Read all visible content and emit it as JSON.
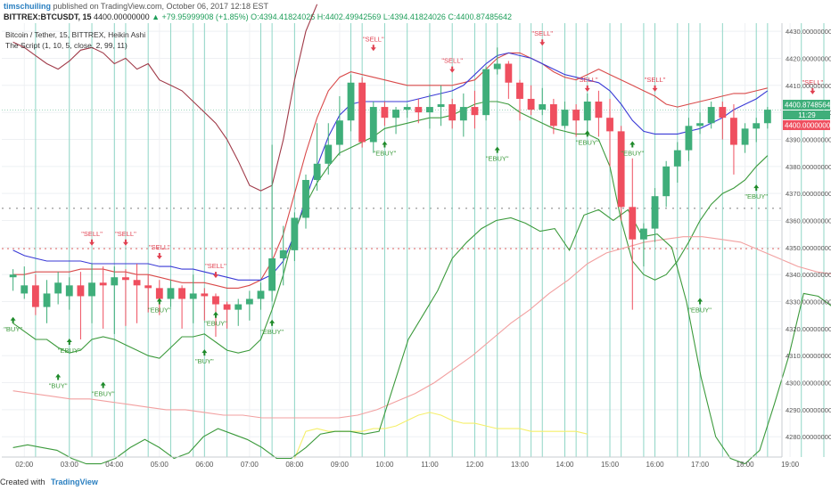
{
  "header": {
    "user": "timschuiling",
    "published": "published on TradingView.com, October 06, 2017 12:18 EST",
    "symbol": "BITTREX:BTCUSDT, 15",
    "price": "4400.00000000",
    "change": "▲ +79.95999908 (+1.85%)",
    "o": "O:4394.41824026",
    "h": "H:4402.49942569",
    "l": "L:4394.41824026",
    "c": "C:4400.87485642"
  },
  "legend": {
    "line1": "Bitcoin / Tether, 15, BITTREX, Heikin Ashi",
    "line2": "The Script (1, 10, 5, close, 2, 99, 11)"
  },
  "price_tags": {
    "current": "4400.87485642",
    "countdown": "11:29",
    "red": "4400.00000000"
  },
  "footer": {
    "created": "Created with",
    "brand": "TradingView"
  },
  "colors": {
    "up": "#3fae7a",
    "down": "#ef4f5f",
    "upper_band": "#d94a4a",
    "mid_band": "#3a3ad6",
    "lower_band": "#3c9a3c",
    "maroon": "#a03a48",
    "salmon": "#f2a0a0",
    "yellow": "#f5ef6a",
    "vline": "#8fd6c6"
  },
  "chart_data": {
    "type": "candlestick",
    "ylim": [
      4272.5,
      4433
    ],
    "y_ticks": [
      "4430.00000000",
      "4420.00000000",
      "4410.00000000",
      "4400.00000000",
      "4390.00000000",
      "4380.00000000",
      "4370.00000000",
      "4360.00000000",
      "4350.00000000",
      "4340.00000000",
      "4330.00000000",
      "4320.00000000",
      "4310.00000000",
      "4300.00000000",
      "4290.00000000",
      "4280.00000000"
    ],
    "y_tick_values": [
      4430,
      4420,
      4410,
      4400,
      4390,
      4380,
      4370,
      4360,
      4350,
      4340,
      4330,
      4320,
      4310,
      4300,
      4290,
      4280
    ],
    "x_ticks": [
      "02:00",
      "03:00",
      "04:00",
      "05:00",
      "06:00",
      "07:00",
      "08:00",
      "09:00",
      "10:00",
      "11:00",
      "12:00",
      "13:00",
      "14:00",
      "15:00",
      "16:00",
      "17:00",
      "18:00",
      "19:00"
    ],
    "x_tick_bars": [
      1,
      5,
      9,
      13,
      17,
      21,
      25,
      29,
      33,
      37,
      41,
      45,
      49,
      53,
      57,
      61,
      65,
      69
    ],
    "candles": [
      [
        4339,
        4340,
        4334,
        4342
      ],
      [
        4333,
        4336,
        4331,
        4343
      ],
      [
        4336,
        4328,
        4325,
        4340
      ],
      [
        4328,
        4333,
        4322,
        4338
      ],
      [
        4333,
        4337,
        4329,
        4341
      ],
      [
        4332,
        4336,
        4327,
        4339
      ],
      [
        4336,
        4332,
        4316,
        4341
      ],
      [
        4332,
        4337,
        4322,
        4344
      ],
      [
        4337,
        4336,
        4320,
        4343
      ],
      [
        4336,
        4339,
        4318,
        4343
      ],
      [
        4339,
        4338,
        4321,
        4342
      ],
      [
        4338,
        4336,
        4322,
        4344
      ],
      [
        4336,
        4335,
        4326,
        4340
      ],
      [
        4335,
        4331,
        4325,
        4338
      ],
      [
        4331,
        4335,
        4328,
        4338
      ],
      [
        4335,
        4331,
        4320,
        4336
      ],
      [
        4331,
        4333,
        4322,
        4340
      ],
      [
        4333,
        4332,
        4323,
        4335
      ],
      [
        4332,
        4329,
        4317,
        4333
      ],
      [
        4329,
        4327,
        4320,
        4330
      ],
      [
        4327,
        4329,
        4321,
        4331
      ],
      [
        4329,
        4331,
        4323,
        4334
      ],
      [
        4331,
        4334,
        4327,
        4337
      ],
      [
        4334,
        4346,
        4330,
        4388
      ],
      [
        4346,
        4349,
        4336,
        4358
      ],
      [
        4349,
        4361,
        4345,
        4363
      ],
      [
        4361,
        4375,
        4357,
        4377
      ],
      [
        4375,
        4381,
        4371,
        4396
      ],
      [
        4381,
        4388,
        4377,
        4396
      ],
      [
        4388,
        4397,
        4384,
        4406
      ],
      [
        4397,
        4411,
        4393,
        4414
      ],
      [
        4411,
        4389,
        4387,
        4413
      ],
      [
        4389,
        4402,
        4385,
        4404
      ],
      [
        4402,
        4398,
        4395,
        4404
      ],
      [
        4398,
        4401,
        4392,
        4402
      ],
      [
        4401,
        4402,
        4398,
        4403
      ],
      [
        4402,
        4400,
        4396,
        4405
      ],
      [
        4400,
        4402,
        4394,
        4407
      ],
      [
        4402,
        4403,
        4395,
        4410
      ],
      [
        4403,
        4397,
        4394,
        4405
      ],
      [
        4397,
        4402,
        4391,
        4407
      ],
      [
        4402,
        4399,
        4394,
        4408
      ],
      [
        4399,
        4416,
        4397,
        4417
      ],
      [
        4416,
        4418,
        4414,
        4424
      ],
      [
        4418,
        4411,
        4405,
        4419
      ],
      [
        4411,
        4405,
        4397,
        4412
      ],
      [
        4405,
        4401,
        4399,
        4410
      ],
      [
        4401,
        4403,
        4399,
        4409
      ],
      [
        4403,
        4395,
        4392,
        4405
      ],
      [
        4395,
        4401,
        4394,
        4404
      ],
      [
        4401,
        4397,
        4391,
        4403
      ],
      [
        4397,
        4404,
        4392,
        4407
      ],
      [
        4404,
        4398,
        4391,
        4408
      ],
      [
        4398,
        4393,
        4380,
        4405
      ],
      [
        4393,
        4365,
        4360,
        4395
      ],
      [
        4365,
        4353,
        4327,
        4383
      ],
      [
        4353,
        4357,
        4343,
        4359
      ],
      [
        4357,
        4369,
        4352,
        4372
      ],
      [
        4369,
        4380,
        4365,
        4382
      ],
      [
        4380,
        4386,
        4374,
        4389
      ],
      [
        4386,
        4395,
        4382,
        4398
      ],
      [
        4395,
        4396,
        4392,
        4400
      ],
      [
        4396,
        4402,
        4394,
        4404
      ],
      [
        4402,
        4398,
        4390,
        4404
      ],
      [
        4398,
        4388,
        4377,
        4403
      ],
      [
        4388,
        4394,
        4385,
        4396
      ],
      [
        4394,
        4396,
        4389,
        4398
      ],
      [
        4396,
        4401,
        4394,
        4402
      ]
    ],
    "series": [
      {
        "name": "upper",
        "color": "#d94a4a",
        "values": [
          4340,
          4340,
          4341,
          4341,
          4341,
          4341,
          4342,
          4342,
          4342,
          4341,
          4341,
          4340,
          4340,
          4339,
          4338,
          4337,
          4337,
          4337,
          4336,
          4335,
          4335,
          4336,
          4338,
          4345,
          4355,
          4370,
          4385,
          4398,
          4408,
          4413,
          4415,
          4414,
          4413,
          4412,
          4411,
          4410,
          4410,
          4410,
          4410,
          4410,
          4411,
          4412,
          4416,
          4420,
          4422,
          4422,
          4420,
          4418,
          4415,
          4413,
          4412,
          4414,
          4416,
          4414,
          4412,
          4410,
          4408,
          4406,
          4403,
          4402,
          4403,
          4404,
          4405,
          4406,
          4407,
          4407,
          4408,
          4409
        ]
      },
      {
        "name": "mid",
        "color": "#3a3ad6",
        "values": [
          4349,
          4347,
          4346,
          4345,
          4345,
          4345,
          4345,
          4344,
          4344,
          4344,
          4344,
          4344,
          4344,
          4343,
          4343,
          4342,
          4342,
          4341,
          4340,
          4339,
          4338,
          4338,
          4338,
          4340,
          4345,
          4355,
          4368,
          4380,
          4391,
          4399,
          4403,
          4404,
          4404,
          4404,
          4404,
          4404,
          4405,
          4406,
          4407,
          4408,
          4410,
          4414,
          4418,
          4421,
          4422,
          4421,
          4420,
          4418,
          4416,
          4414,
          4413,
          4412,
          4411,
          4408,
          4403,
          4397,
          4393,
          4392,
          4392,
          4392,
          4393,
          4394,
          4396,
          4398,
          4401,
          4403,
          4405,
          4408
        ]
      },
      {
        "name": "lower",
        "color": "#3c9a3c",
        "values": [
          4322,
          4319,
          4316,
          4316,
          4313,
          4311,
          4312,
          4316,
          4317,
          4316,
          4314,
          4312,
          4310,
          4309,
          4313,
          4317,
          4317,
          4318,
          4315,
          4312,
          4311,
          4312,
          4316,
          4327,
          4340,
          4356,
          4366,
          4374,
          4380,
          4385,
          4387,
          4389,
          4391,
          4394,
          4395,
          4396,
          4397,
          4398,
          4398,
          4399,
          4401,
          4403,
          4404,
          4404,
          4403,
          4400,
          4398,
          4396,
          4394,
          4393,
          4392,
          4392,
          4390,
          4380,
          4360,
          4345,
          4340,
          4338,
          4340,
          4345,
          4352,
          4360,
          4366,
          4370,
          4372,
          4375,
          4380,
          4384
        ]
      },
      {
        "name": "maroon",
        "color": "#a03a48",
        "values": [
          4426,
          4424,
          4421,
          4418,
          4416,
          4419,
          4423,
          4424,
          4422,
          4418,
          4420,
          4416,
          4418,
          4412,
          4410,
          4408,
          4404,
          4400,
          4396,
          4390,
          4382,
          4373,
          4371,
          4373,
          4390,
          4412,
          4430,
          4440
        ]
      },
      {
        "name": "salmon",
        "color": "#f2a0a0",
        "values": [
          4297,
          4296,
          4295,
          4294,
          4294,
          4293,
          4292,
          4291,
          4290,
          4290,
          4289,
          4288,
          4288,
          4287,
          4287,
          4287,
          4287,
          4287,
          4288,
          4290,
          4293,
          4296,
          4300,
          4305,
          4310,
          4316,
          4322,
          4327,
          4333,
          4338,
          4344,
          4348,
          4350,
          4352,
          4353,
          4354,
          4354,
          4353,
          4352,
          4349,
          4346,
          4343,
          4341,
          4340
        ]
      },
      {
        "name": "yellow",
        "color": "#f5ef6a",
        "values": [
          4272,
          4282,
          4283,
          4282,
          4282,
          4282,
          4282,
          4283,
          4283,
          4284,
          4286,
          4288,
          4289,
          4288,
          4286,
          4285,
          4285,
          4284,
          4283,
          4283,
          4283,
          4282,
          4282,
          4282,
          4282,
          4282,
          4281
        ]
      },
      {
        "name": "green2",
        "color": "#3c9a3c",
        "values": [
          4276,
          4277,
          4276,
          4275,
          4272,
          4270,
          4270,
          4272,
          4276,
          4279,
          4276,
          4272,
          4274,
          4280,
          4283,
          4281,
          4279,
          4276,
          4272,
          4272,
          4276,
          4281,
          4282,
          4282,
          4281,
          4282,
          4299,
          4316,
          4325,
          4334,
          4346,
          4352,
          4357,
          4360,
          4361,
          4359,
          4356,
          4357,
          4349,
          4362,
          4364,
          4360,
          4364,
          4354,
          4355,
          4350,
          4330,
          4302,
          4280,
          4272,
          4270,
          4275,
          4292,
          4310,
          4333,
          4332,
          4328,
          4330,
          4334,
          4339
        ]
      }
    ],
    "signals": [
      {
        "label": "\"BUY\"",
        "type": "buy",
        "bar": 0,
        "value": 4323
      },
      {
        "label": "\"EBUY\"",
        "type": "buy",
        "bar": 5,
        "value": 4315
      },
      {
        "label": "\"BUY\"",
        "type": "buy",
        "bar": 4,
        "value": 4302
      },
      {
        "label": "\"EBUY\"",
        "type": "buy",
        "bar": 8,
        "value": 4299
      },
      {
        "label": "\"EBUY\"",
        "type": "buy",
        "bar": 13,
        "value": 4330
      },
      {
        "label": "\"EBUY\"",
        "type": "buy",
        "bar": 18,
        "value": 4325
      },
      {
        "label": "\"BUY\"",
        "type": "buy",
        "bar": 17,
        "value": 4311
      },
      {
        "label": "\"EBUY\"",
        "type": "buy",
        "bar": 23,
        "value": 4322
      },
      {
        "label": "\"EBUY\"",
        "type": "buy",
        "bar": 33,
        "value": 4388
      },
      {
        "label": "\"EBUY\"",
        "type": "buy",
        "bar": 43,
        "value": 4386
      },
      {
        "label": "\"EBUY\"",
        "type": "buy",
        "bar": 51,
        "value": 4392
      },
      {
        "label": "\"EBUY\"",
        "type": "buy",
        "bar": 55,
        "value": 4388
      },
      {
        "label": "\"EBUY\"",
        "type": "buy",
        "bar": 61,
        "value": 4330
      },
      {
        "label": "\"EBUY\"",
        "type": "buy",
        "bar": 66,
        "value": 4372
      },
      {
        "label": "\"EBUY\"",
        "type": "buy",
        "bar": 74,
        "value": 4369
      },
      {
        "label": "\"SELL\"",
        "type": "sell",
        "bar": 7,
        "value": 4352
      },
      {
        "label": "\"SELL\"",
        "type": "sell",
        "bar": 10,
        "value": 4352
      },
      {
        "label": "\"SELL\"",
        "type": "sell",
        "bar": 13,
        "value": 4347
      },
      {
        "label": "\"SELL\"",
        "type": "sell",
        "bar": 18,
        "value": 4340
      },
      {
        "label": "\"SELL\"",
        "type": "sell",
        "bar": 32,
        "value": 4424
      },
      {
        "label": "\"SELL\"",
        "type": "sell",
        "bar": 39,
        "value": 4416
      },
      {
        "label": "\"SELL\"",
        "type": "sell",
        "bar": 47,
        "value": 4426
      },
      {
        "label": "\"SELL\"",
        "type": "sell",
        "bar": 51,
        "value": 4409
      },
      {
        "label": "\"SELL\"",
        "type": "sell",
        "bar": 57,
        "value": 4409
      },
      {
        "label": "\"SELL\"",
        "type": "sell",
        "bar": 71,
        "value": 4408
      }
    ],
    "vlines": [
      2,
      5,
      7,
      9,
      10,
      12,
      14,
      16,
      17,
      19,
      22,
      23,
      25,
      30,
      31,
      33,
      35,
      37,
      39,
      41,
      42,
      43,
      45,
      46,
      47,
      49,
      50,
      51,
      53,
      54,
      56,
      57,
      59,
      60,
      61,
      63,
      66,
      67,
      70,
      72,
      74
    ]
  }
}
